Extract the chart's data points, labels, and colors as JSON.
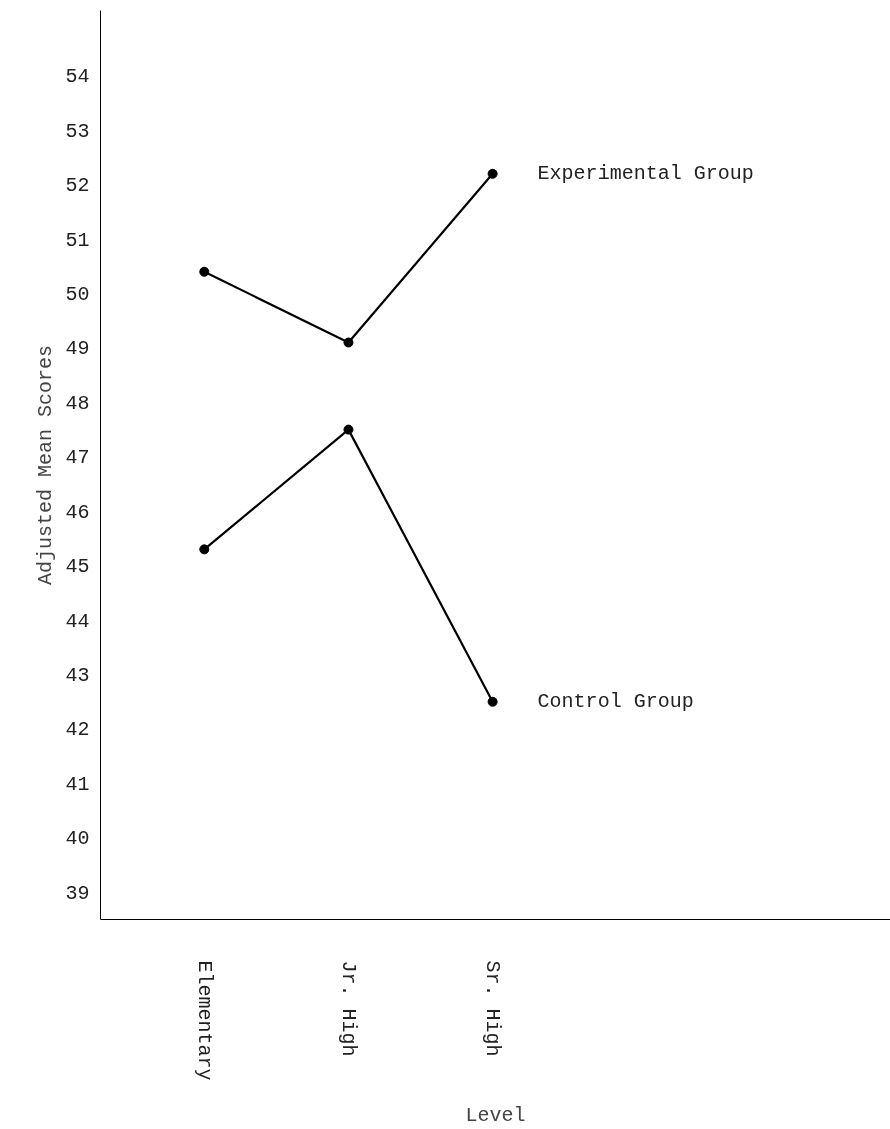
{
  "chart_data": {
    "type": "line",
    "xlabel": "Level",
    "ylabel": "Adjusted Mean Scores",
    "categories": [
      "Elementary",
      "Jr. High",
      "Sr. High"
    ],
    "series": [
      {
        "name": "Experimental Group",
        "color": "#000000",
        "values": [
          50.4,
          49.1,
          52.2
        ]
      },
      {
        "name": "Control Group",
        "color": "#000000",
        "values": [
          45.3,
          47.5,
          42.5
        ]
      }
    ],
    "ylim": [
      38.5,
      55.2
    ],
    "yticks": [
      39,
      40,
      41,
      42,
      43,
      44,
      45,
      46,
      47,
      48,
      49,
      50,
      51,
      52,
      53,
      54
    ],
    "grid": false,
    "legend": false,
    "marker": "circle",
    "line_style": "solid"
  }
}
